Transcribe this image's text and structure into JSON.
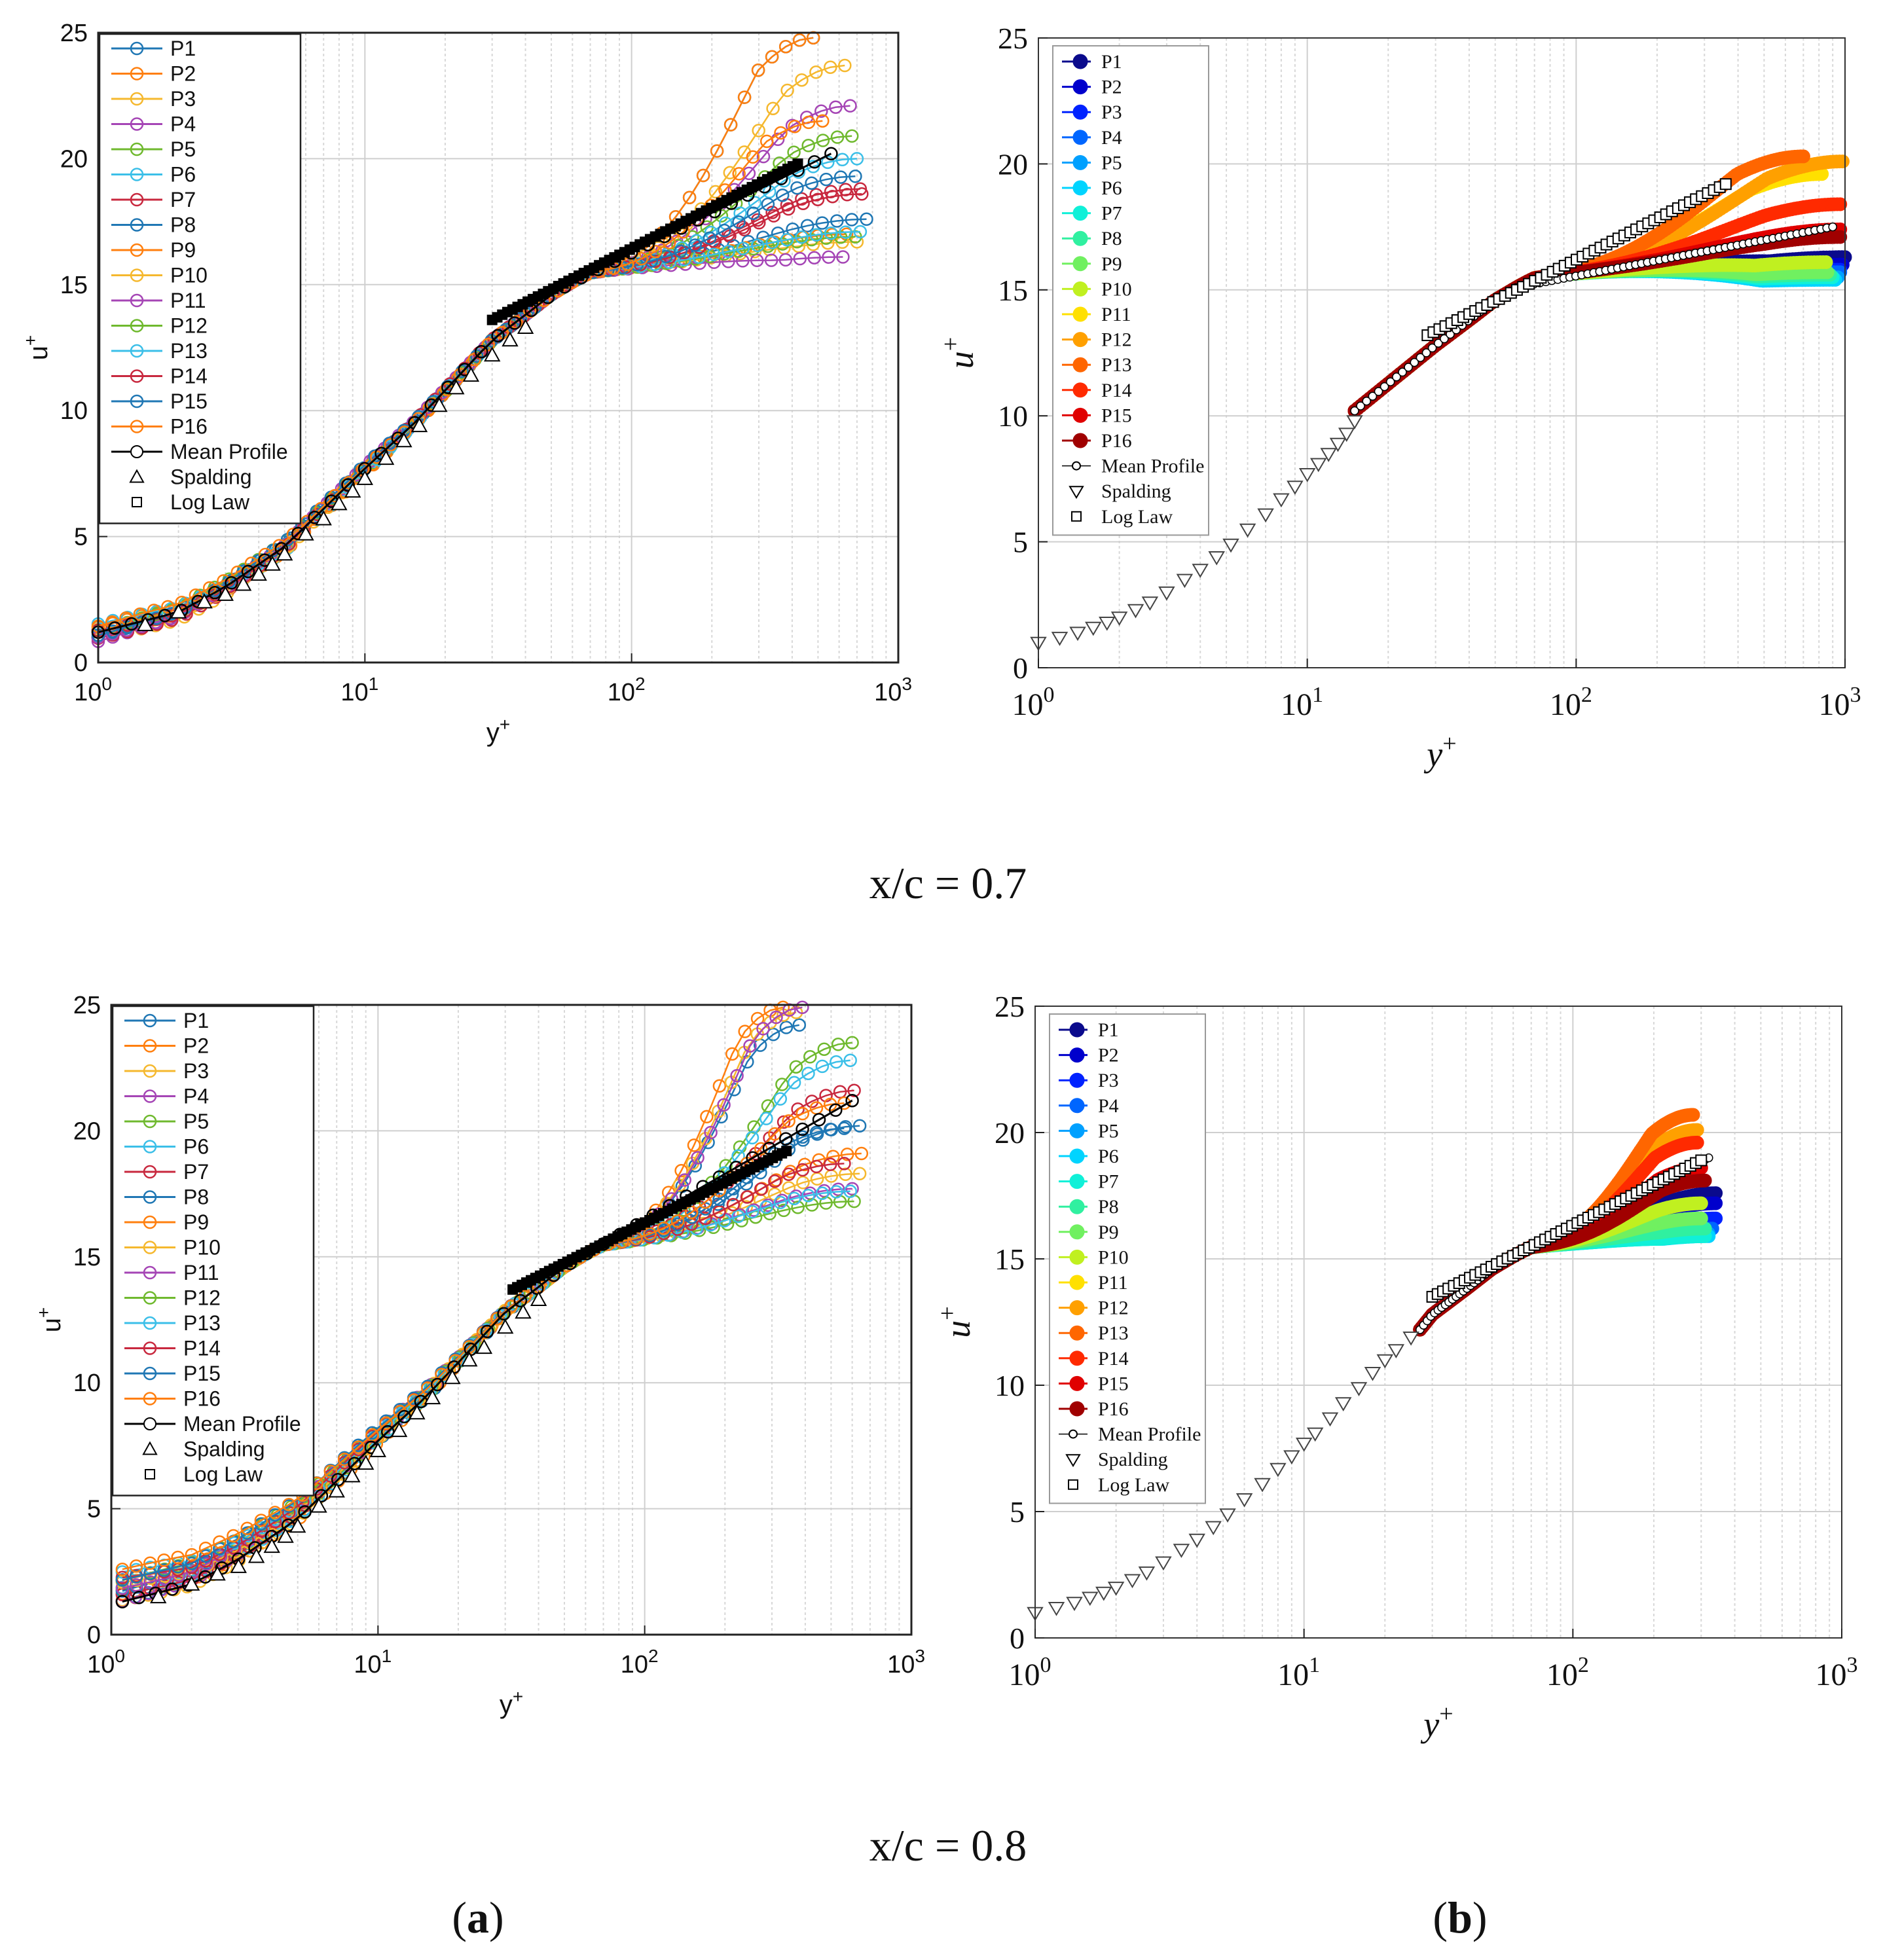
{
  "figure": {
    "captions": {
      "row1": "x/c = 0.7",
      "row2": "x/c = 0.8",
      "panel_a": "a",
      "panel_b": "b"
    },
    "profile_names": [
      "P1",
      "P2",
      "P3",
      "P4",
      "P5",
      "P6",
      "P7",
      "P8",
      "P9",
      "P10",
      "P11",
      "P12",
      "P13",
      "P14",
      "P15",
      "P16"
    ],
    "legend_extra": {
      "mean": "Mean Profile",
      "spalding": "Spalding",
      "loglaw": "Log Law"
    },
    "colors_a": [
      "#1f77b4",
      "#ff7f0e",
      "#f5b82e",
      "#a545b5",
      "#6fb92e",
      "#3bbfe8",
      "#c8283e",
      "#1f77b4",
      "#ff7f0e",
      "#f5b82e",
      "#a545b5",
      "#6fb92e",
      "#3bbfe8",
      "#c8283e",
      "#1f77b4",
      "#ff7f0e"
    ],
    "colors_b": [
      "#0a0a8c",
      "#0000cc",
      "#0022ff",
      "#0066ff",
      "#00a0ff",
      "#00d4ff",
      "#10f0d8",
      "#30f0a0",
      "#70f060",
      "#c0f020",
      "#ffe000",
      "#ffa000",
      "#ff6600",
      "#ff2a00",
      "#e00000",
      "#a00000"
    ],
    "black": "#000000"
  },
  "chart_data": [
    {
      "id": "a-0.7",
      "type": "scatter",
      "style": "a",
      "xlabel": "y",
      "xlabel_sup": "+",
      "ylabel": "u",
      "ylabel_sup": "+",
      "xscale": "log",
      "xlim": [
        1,
        1000
      ],
      "ylim": [
        0,
        25
      ],
      "yticks": [
        0,
        5,
        10,
        15,
        20,
        25
      ],
      "xtick_exponents": [
        "0",
        "1",
        "2",
        "3"
      ],
      "ymax_start": 1.35,
      "ymin_start": 1.0,
      "start_x": 1.0,
      "end_vals": [
        24.8,
        24.8,
        23.7,
        22.1,
        20.9,
        20.0,
        18.6,
        17.6,
        17.0,
        16.7,
        16.1,
        16.9,
        17.1,
        18.8,
        19.3,
        21.5
      ],
      "end_x": [
        480,
        480,
        630,
        660,
        670,
        700,
        730,
        760,
        640,
        700,
        620,
        690,
        720,
        720,
        690,
        520
      ],
      "mean_end": 20.2,
      "mean_end_x": 560,
      "spalding": {
        "x": [
          1.5,
          2,
          2.5,
          3,
          3.5,
          4,
          4.5,
          5,
          6,
          7,
          8,
          9,
          10,
          12,
          14,
          16,
          19,
          22,
          25,
          30,
          35,
          40
        ],
        "y": [
          1.5,
          2.0,
          2.4,
          2.7,
          3.1,
          3.5,
          3.9,
          4.3,
          5.1,
          5.7,
          6.3,
          6.8,
          7.3,
          8.1,
          8.8,
          9.4,
          10.2,
          10.9,
          11.4,
          12.2,
          12.8,
          13.3
        ]
      },
      "loglaw": {
        "x": [
          30,
          420
        ],
        "y": [
          13.6,
          19.8
        ]
      },
      "legend": {
        "location": "upper-left",
        "entries": [
          "P1",
          "P2",
          "P3",
          "P4",
          "P5",
          "P6",
          "P7",
          "P8",
          "P9",
          "P10",
          "P11",
          "P12",
          "P13",
          "P14",
          "P15",
          "P16",
          "Mean Profile",
          "Spalding",
          "Log Law"
        ]
      }
    },
    {
      "id": "b-0.7",
      "type": "scatter",
      "style": "b",
      "xlabel": "y",
      "xlabel_sup": "+",
      "ylabel": "u",
      "ylabel_sup": "+",
      "xscale": "log",
      "xlim": [
        1,
        1000
      ],
      "ylim": [
        0,
        25
      ],
      "yticks": [
        0,
        5,
        10,
        15,
        20,
        25
      ],
      "xtick_exponents": [
        "0",
        "1",
        "2",
        "3"
      ],
      "start_x": 15,
      "start_u": 10.2,
      "end_vals": [
        16.3,
        16.0,
        15.8,
        15.7,
        15.5,
        15.4,
        15.5,
        15.6,
        15.7,
        16.1,
        19.6,
        20.1,
        20.3,
        18.4,
        17.4,
        17.1
      ],
      "end_x": [
        1000,
        980,
        960,
        960,
        940,
        920,
        900,
        880,
        860,
        850,
        820,
        980,
        700,
        960,
        960,
        960
      ],
      "mean_end": 17.5,
      "mean_end_x": 900,
      "spalding": {
        "x": [
          1,
          1.2,
          1.4,
          1.6,
          1.8,
          2,
          2.3,
          2.6,
          3,
          3.5,
          4,
          4.6,
          5.2,
          6,
          7,
          8,
          9,
          10,
          11,
          12,
          13,
          14,
          15
        ],
        "y": [
          1.0,
          1.2,
          1.4,
          1.6,
          1.8,
          2.0,
          2.3,
          2.6,
          3.0,
          3.5,
          3.9,
          4.4,
          4.9,
          5.5,
          6.1,
          6.7,
          7.2,
          7.7,
          8.1,
          8.5,
          8.9,
          9.3,
          9.8
        ]
      },
      "loglaw": {
        "x": [
          28,
          360
        ],
        "y": [
          13.2,
          19.2
        ]
      },
      "legend": {
        "location": "upper-left",
        "entries": [
          "P1",
          "P2",
          "P3",
          "P4",
          "P5",
          "P6",
          "P7",
          "P8",
          "P9",
          "P10",
          "P11",
          "P12",
          "P13",
          "P14",
          "P15",
          "P16",
          "Mean Profile",
          "Spalding",
          "Log Law"
        ]
      }
    },
    {
      "id": "a-0.8",
      "type": "scatter",
      "style": "a",
      "xlabel": "y",
      "xlabel_sup": "+",
      "ylabel": "u",
      "ylabel_sup": "+",
      "xscale": "log",
      "xlim": [
        1,
        1000
      ],
      "ylim": [
        0,
        25
      ],
      "yticks": [
        0,
        5,
        10,
        15,
        20,
        25
      ],
      "xtick_exponents": [
        "0",
        "1",
        "2",
        "3"
      ],
      "ymax_start": 2.4,
      "ymin_start": 1.2,
      "start_x": 1.1,
      "end_vals": [
        24.2,
        24.9,
        24.7,
        24.9,
        23.5,
        22.8,
        21.6,
        20.2,
        19.1,
        18.3,
        17.7,
        17.2,
        17.6,
        18.7,
        20.1,
        21.1
      ],
      "end_x": [
        380,
        330,
        370,
        390,
        600,
        590,
        610,
        640,
        650,
        640,
        600,
        610,
        590,
        560,
        560,
        560
      ],
      "mean_end": 21.2,
      "mean_end_x": 600,
      "spalding": {
        "x": [
          1.5,
          2,
          2.5,
          3,
          3.5,
          4,
          4.5,
          5,
          6,
          7,
          8,
          9,
          10,
          12,
          14,
          16,
          19,
          22,
          25,
          30,
          35,
          40
        ],
        "y": [
          1.5,
          2.0,
          2.4,
          2.7,
          3.1,
          3.5,
          3.9,
          4.3,
          5.1,
          5.7,
          6.3,
          6.8,
          7.3,
          8.1,
          8.8,
          9.4,
          10.2,
          10.9,
          11.4,
          12.2,
          12.8,
          13.3
        ]
      },
      "loglaw": {
        "x": [
          32,
          340
        ],
        "y": [
          13.7,
          19.2
        ]
      },
      "legend": {
        "location": "upper-left",
        "entries": [
          "P1",
          "P2",
          "P3",
          "P4",
          "P5",
          "P6",
          "P7",
          "P8",
          "P9",
          "P10",
          "P11",
          "P12",
          "P13",
          "P14",
          "P15",
          "P16",
          "Mean Profile",
          "Spalding",
          "Log Law"
        ]
      }
    },
    {
      "id": "b-0.8",
      "type": "scatter",
      "style": "b",
      "xlabel": "y",
      "xlabel_sup": "+",
      "ylabel": "u",
      "ylabel_sup": "+",
      "xscale": "log",
      "xlim": [
        1,
        1000
      ],
      "ylim": [
        0,
        25
      ],
      "yticks": [
        0,
        5,
        10,
        15,
        20,
        25
      ],
      "xtick_exponents": [
        "0",
        "1",
        "2",
        "3"
      ],
      "start_x": 27,
      "start_u": 12.2,
      "end_vals": [
        17.6,
        17.2,
        16.6,
        16.2,
        16.0,
        15.9,
        15.9,
        16.2,
        16.6,
        17.2,
        18.2,
        20.1,
        20.7,
        19.6,
        18.6,
        18.1
      ],
      "end_x": [
        340,
        340,
        340,
        330,
        320,
        320,
        310,
        310,
        300,
        300,
        290,
        290,
        280,
        290,
        300,
        310
      ],
      "mean_end": 19.0,
      "mean_end_x": 320,
      "spalding": {
        "x": [
          1,
          1.2,
          1.4,
          1.6,
          1.8,
          2,
          2.3,
          2.6,
          3,
          3.5,
          4,
          4.6,
          5.2,
          6,
          7,
          8,
          9,
          10,
          11,
          12.5,
          14,
          16,
          18,
          20,
          22,
          25
        ],
        "y": [
          1.0,
          1.2,
          1.4,
          1.6,
          1.8,
          2.0,
          2.3,
          2.6,
          3.0,
          3.5,
          3.9,
          4.4,
          4.9,
          5.5,
          6.1,
          6.7,
          7.2,
          7.7,
          8.1,
          8.7,
          9.3,
          9.9,
          10.5,
          11.0,
          11.4,
          11.9
        ]
      },
      "loglaw": {
        "x": [
          30,
          300
        ],
        "y": [
          13.5,
          18.9
        ]
      },
      "legend": {
        "location": "upper-left",
        "entries": [
          "P1",
          "P2",
          "P3",
          "P4",
          "P5",
          "P6",
          "P7",
          "P8",
          "P9",
          "P10",
          "P11",
          "P12",
          "P13",
          "P14",
          "P15",
          "P16",
          "Mean Profile",
          "Spalding",
          "Log Law"
        ]
      }
    }
  ]
}
